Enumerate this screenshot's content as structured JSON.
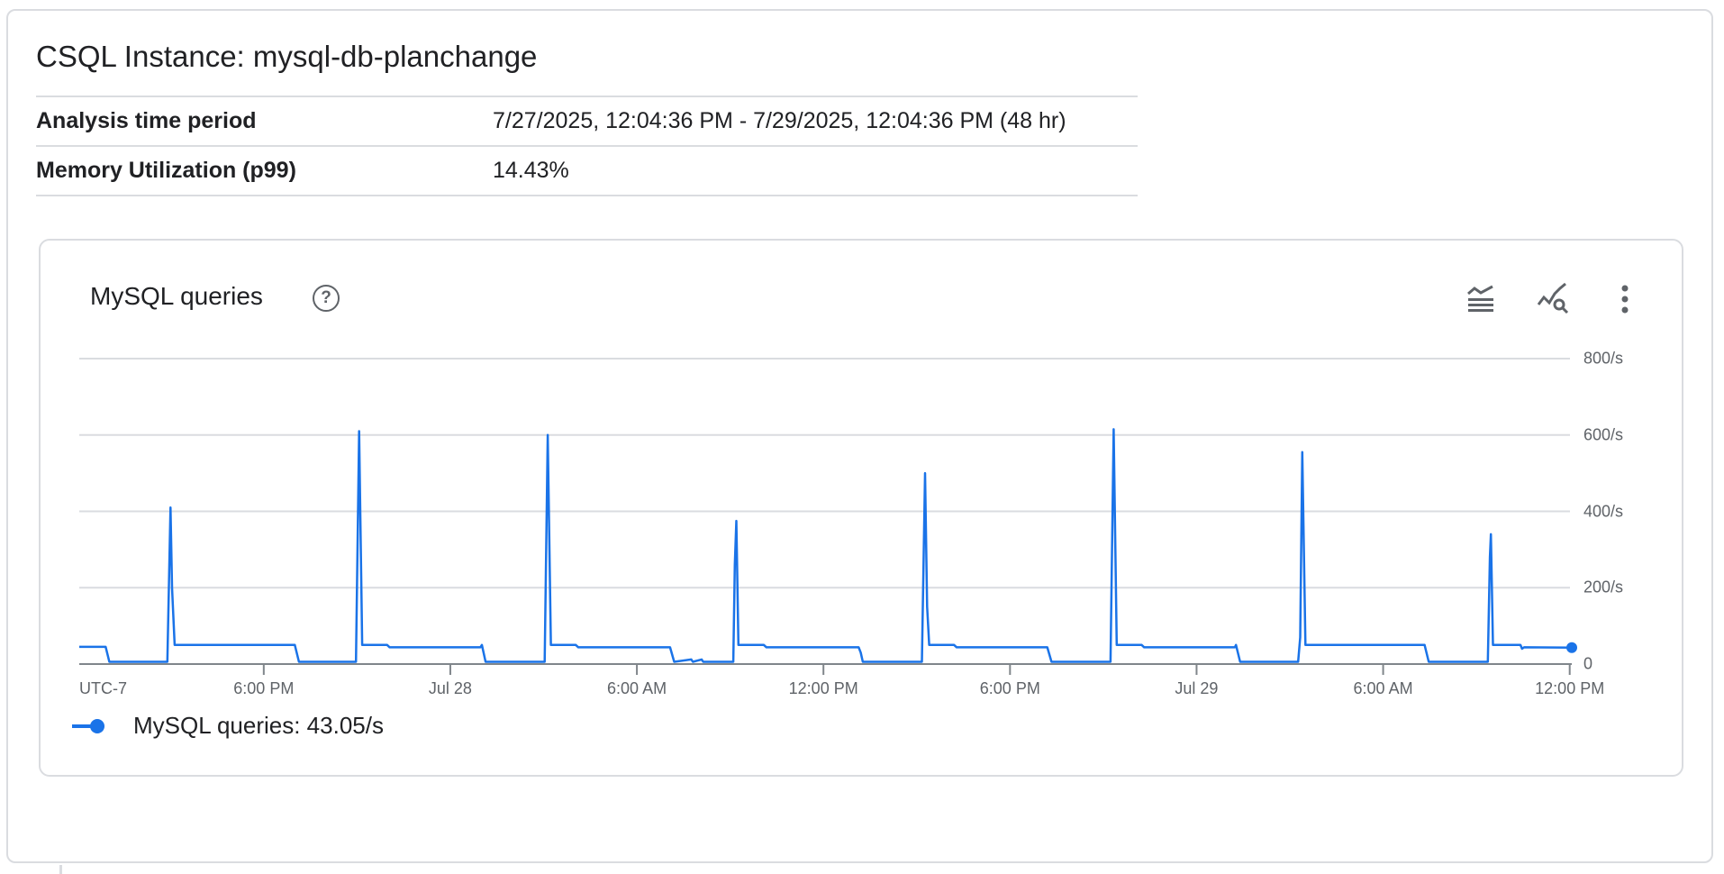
{
  "header": {
    "title": "CSQL Instance: mysql-db-planchange"
  },
  "summary": [
    {
      "label": "Analysis time period",
      "value": "7/27/2025, 12:04:36 PM - 7/29/2025, 12:04:36 PM (48 hr)"
    },
    {
      "label": "Memory Utilization (p99)",
      "value": "14.43%"
    }
  ],
  "chart_card": {
    "title": "MySQL queries",
    "help_icon": "help-circle-icon",
    "toolbar_icons": [
      "legend-toggle-icon",
      "explore-query-icon",
      "more-vert-icon"
    ]
  },
  "chart_data": {
    "type": "line",
    "title": "MySQL queries",
    "color": "#1a73e8",
    "grid": true,
    "legend": "bottom-left",
    "y_axis": {
      "position": "right",
      "ylim": [
        0,
        800
      ],
      "ticks": [
        0,
        200,
        400,
        600,
        800
      ],
      "tick_labels": [
        "0",
        "200/s",
        "400/s",
        "600/s",
        "800/s"
      ]
    },
    "x_axis": {
      "xlim": [
        "2025-07-27T12:04",
        "2025-07-29T12:04"
      ],
      "timezone_label": "UTC-7",
      "ticks": [
        "2025-07-27T18:00",
        "2025-07-28T00:00",
        "2025-07-28T06:00",
        "2025-07-28T12:00",
        "2025-07-28T18:00",
        "2025-07-29T00:00",
        "2025-07-29T06:00",
        "2025-07-29T12:00"
      ],
      "tick_labels": [
        "6:00 PM",
        "Jul 28",
        "6:00 AM",
        "12:00 PM",
        "6:00 PM",
        "Jul 29",
        "6:00 AM",
        "12:00 PM"
      ]
    },
    "series": [
      {
        "name": "MySQL queries",
        "legend_value": "43.05/s",
        "points": [
          [
            "2025-07-27T12:04",
            45
          ],
          [
            "2025-07-27T12:55",
            45
          ],
          [
            "2025-07-27T13:02",
            6
          ],
          [
            "2025-07-27T14:54",
            6
          ],
          [
            "2025-07-27T15:00",
            410
          ],
          [
            "2025-07-27T15:03",
            200
          ],
          [
            "2025-07-27T15:08",
            50
          ],
          [
            "2025-07-27T19:00",
            50
          ],
          [
            "2025-07-27T19:08",
            6
          ],
          [
            "2025-07-27T20:58",
            6
          ],
          [
            "2025-07-27T21:04",
            610
          ],
          [
            "2025-07-27T21:10",
            50
          ],
          [
            "2025-07-27T21:58",
            50
          ],
          [
            "2025-07-27T22:03",
            44
          ],
          [
            "2025-07-28T00:58",
            44
          ],
          [
            "2025-07-28T01:01",
            50
          ],
          [
            "2025-07-28T01:08",
            6
          ],
          [
            "2025-07-28T03:02",
            6
          ],
          [
            "2025-07-28T03:08",
            600
          ],
          [
            "2025-07-28T03:14",
            50
          ],
          [
            "2025-07-28T04:02",
            50
          ],
          [
            "2025-07-28T04:07",
            44
          ],
          [
            "2025-07-28T07:04",
            44
          ],
          [
            "2025-07-28T07:12",
            6
          ],
          [
            "2025-07-28T07:45",
            12
          ],
          [
            "2025-07-28T07:48",
            6
          ],
          [
            "2025-07-28T08:05",
            12
          ],
          [
            "2025-07-28T08:08",
            6
          ],
          [
            "2025-07-28T09:06",
            6
          ],
          [
            "2025-07-28T09:09",
            260
          ],
          [
            "2025-07-28T09:12",
            375
          ],
          [
            "2025-07-28T09:16",
            50
          ],
          [
            "2025-07-28T10:05",
            50
          ],
          [
            "2025-07-28T10:10",
            44
          ],
          [
            "2025-07-28T13:08",
            44
          ],
          [
            "2025-07-28T13:12",
            30
          ],
          [
            "2025-07-28T13:16",
            6
          ],
          [
            "2025-07-28T15:10",
            6
          ],
          [
            "2025-07-28T15:16",
            500
          ],
          [
            "2025-07-28T15:20",
            150
          ],
          [
            "2025-07-28T15:24",
            50
          ],
          [
            "2025-07-28T16:12",
            50
          ],
          [
            "2025-07-28T16:17",
            44
          ],
          [
            "2025-07-28T19:12",
            44
          ],
          [
            "2025-07-28T19:20",
            6
          ],
          [
            "2025-07-28T21:14",
            6
          ],
          [
            "2025-07-28T21:20",
            615
          ],
          [
            "2025-07-28T21:26",
            50
          ],
          [
            "2025-07-28T22:14",
            50
          ],
          [
            "2025-07-28T22:19",
            44
          ],
          [
            "2025-07-29T01:14",
            44
          ],
          [
            "2025-07-29T01:16",
            50
          ],
          [
            "2025-07-29T01:24",
            6
          ],
          [
            "2025-07-29T03:16",
            6
          ],
          [
            "2025-07-29T03:20",
            70
          ],
          [
            "2025-07-29T03:24",
            555
          ],
          [
            "2025-07-29T03:30",
            50
          ],
          [
            "2025-07-29T07:20",
            50
          ],
          [
            "2025-07-29T07:28",
            6
          ],
          [
            "2025-07-29T09:22",
            6
          ],
          [
            "2025-07-29T09:26",
            280
          ],
          [
            "2025-07-29T09:28",
            340
          ],
          [
            "2025-07-29T09:32",
            50
          ],
          [
            "2025-07-29T10:25",
            50
          ],
          [
            "2025-07-29T10:28",
            40
          ],
          [
            "2025-07-29T10:32",
            44
          ],
          [
            "2025-07-29T12:04",
            43.05
          ]
        ]
      }
    ]
  }
}
